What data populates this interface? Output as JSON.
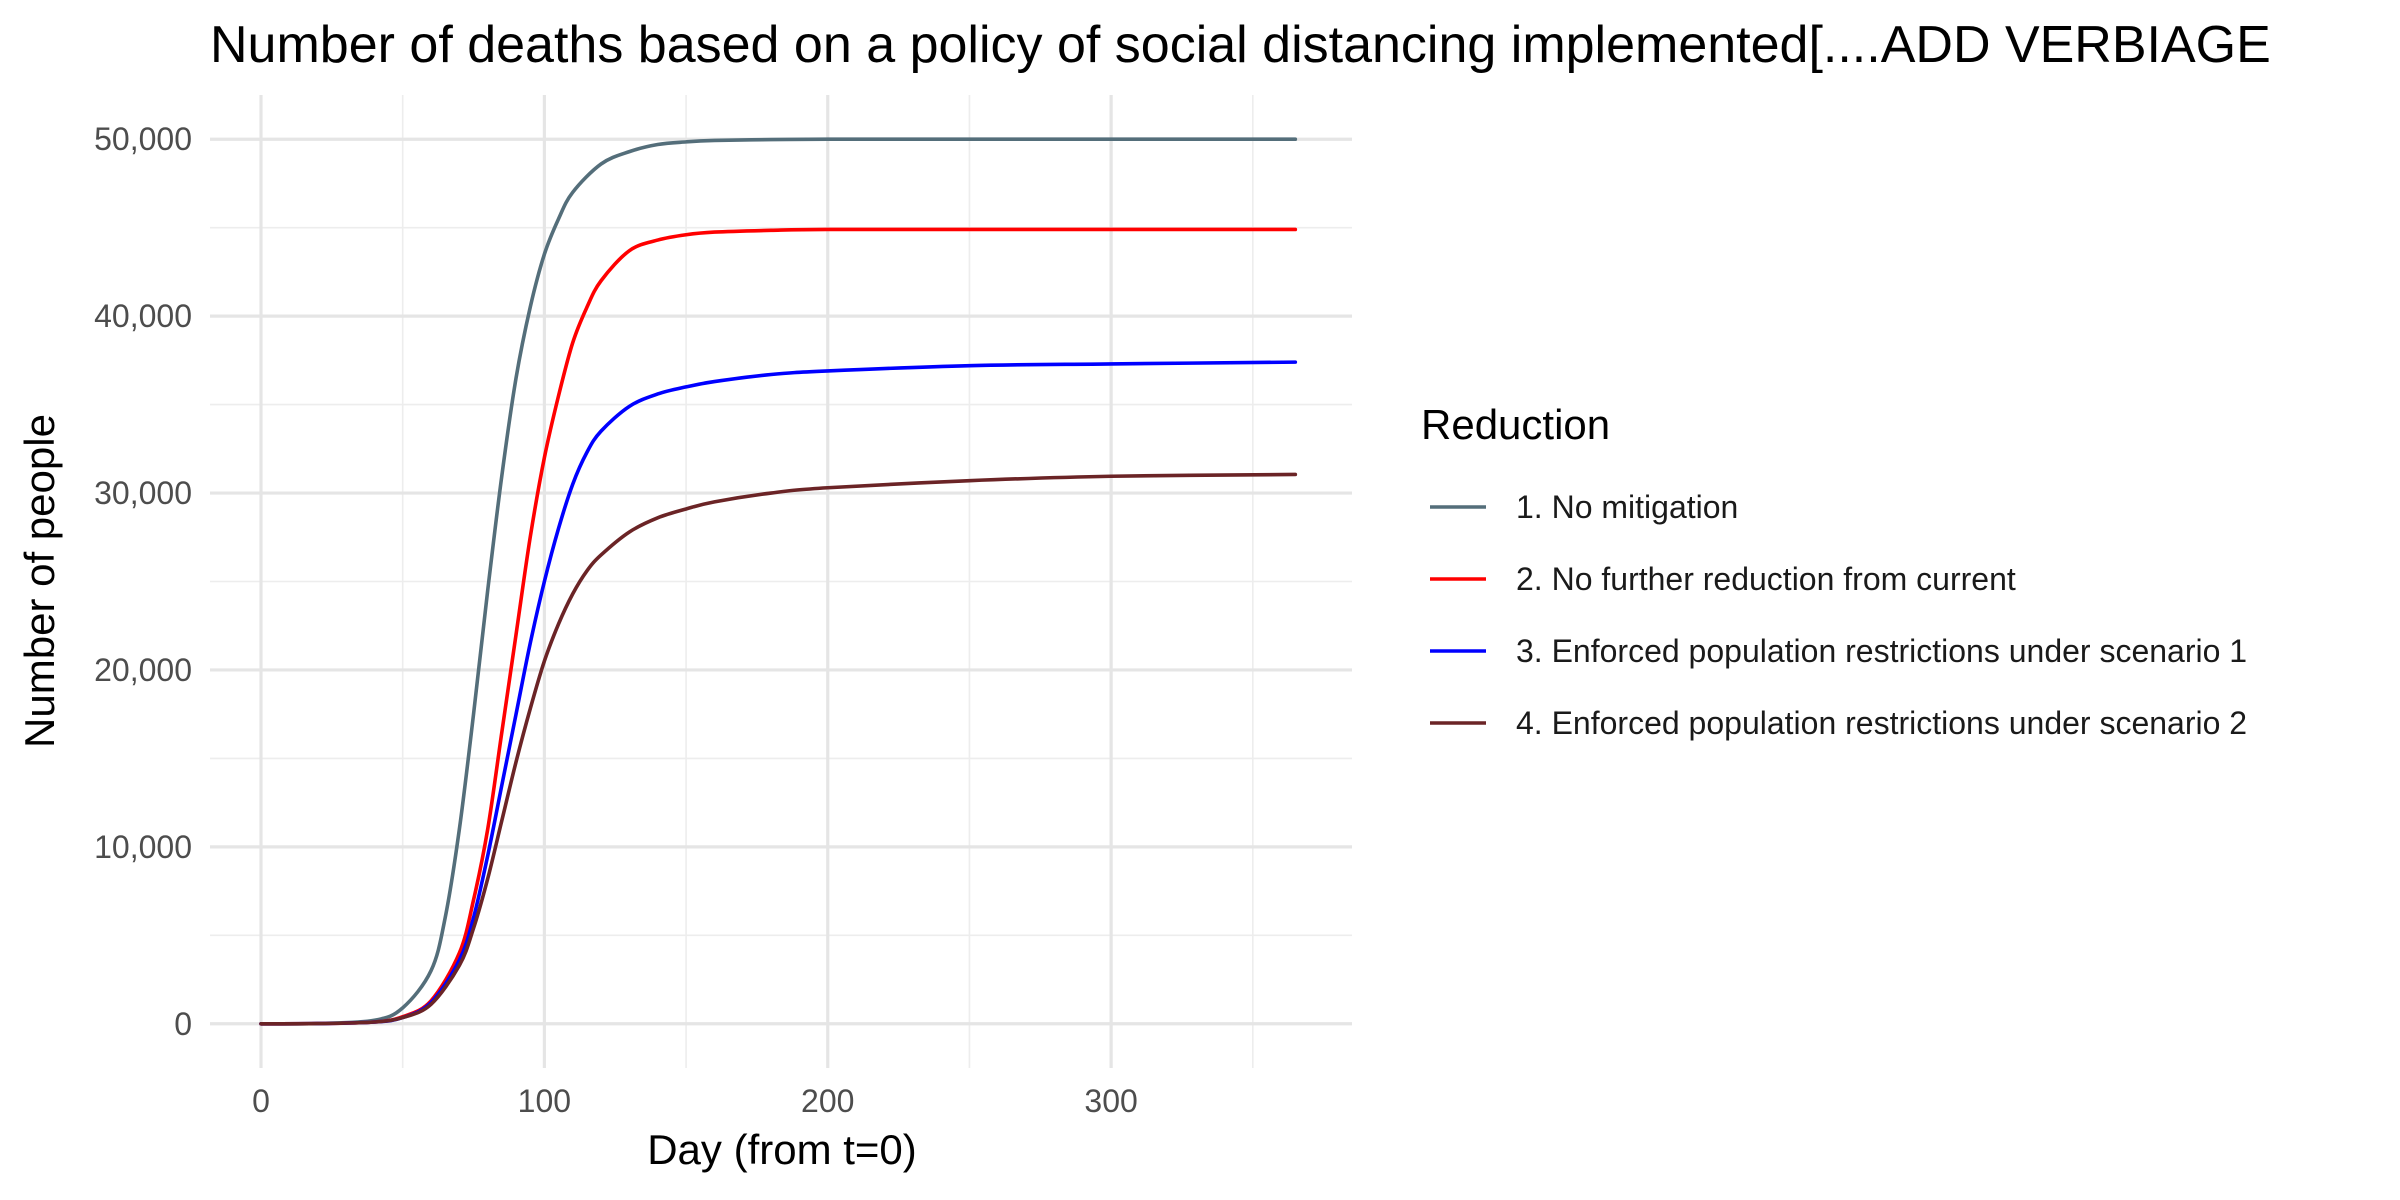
{
  "chart_data": {
    "type": "line",
    "title": "Number of deaths based on a policy of social distancing implemented[....ADD VERBIAGE",
    "xlabel": "Day (from t=0)",
    "ylabel": "Number of people",
    "xlim": [
      -18,
      385
    ],
    "ylim": [
      -2500,
      52500
    ],
    "xticks": [
      0,
      100,
      200,
      300
    ],
    "xtick_labels": [
      "0",
      "100",
      "200",
      "300"
    ],
    "yticks": [
      0,
      10000,
      20000,
      30000,
      40000,
      50000
    ],
    "ytick_labels": [
      "0",
      "10,000",
      "20,000",
      "30,000",
      "40,000",
      "50,000"
    ],
    "grid": true,
    "legend": {
      "title": "Reduction",
      "position": "right"
    },
    "series": [
      {
        "name": "1. No mitigation",
        "color": "#546e7a",
        "x": [
          0,
          20,
          40,
          50,
          60,
          65,
          70,
          75,
          80,
          85,
          90,
          95,
          100,
          105,
          110,
          120,
          130,
          140,
          150,
          160,
          180,
          200,
          250,
          300,
          365
        ],
        "y": [
          0,
          20,
          200,
          900,
          3000,
          6000,
          11000,
          17500,
          24500,
          31000,
          36500,
          40500,
          43500,
          45500,
          47000,
          48600,
          49300,
          49700,
          49850,
          49930,
          49980,
          50000,
          50000,
          50000,
          50000
        ]
      },
      {
        "name": "2. No further reduction from current",
        "color": "#ff0000",
        "x": [
          0,
          20,
          40,
          50,
          60,
          70,
          75,
          80,
          85,
          90,
          95,
          100,
          105,
          110,
          115,
          120,
          130,
          140,
          150,
          160,
          180,
          200,
          250,
          300,
          365
        ],
        "y": [
          0,
          10,
          100,
          400,
          1300,
          4000,
          7000,
          11000,
          16500,
          22000,
          27500,
          32000,
          35500,
          38500,
          40500,
          42000,
          43700,
          44300,
          44600,
          44750,
          44850,
          44900,
          44900,
          44900,
          44900
        ]
      },
      {
        "name": "3. Enforced population restrictions under scenario 1",
        "color": "#0000ff",
        "x": [
          0,
          20,
          40,
          50,
          60,
          70,
          75,
          80,
          85,
          90,
          95,
          100,
          105,
          110,
          115,
          120,
          130,
          140,
          150,
          160,
          180,
          200,
          250,
          300,
          365
        ],
        "y": [
          0,
          10,
          100,
          350,
          1200,
          3600,
          6000,
          9500,
          13500,
          17500,
          21500,
          25000,
          28000,
          30500,
          32300,
          33500,
          34900,
          35600,
          36000,
          36300,
          36700,
          36900,
          37200,
          37300,
          37400
        ]
      },
      {
        "name": "4. Enforced population restrictions under scenario 2",
        "color": "#6b2426",
        "x": [
          0,
          20,
          40,
          50,
          60,
          70,
          75,
          80,
          85,
          90,
          95,
          100,
          105,
          110,
          115,
          120,
          130,
          140,
          150,
          160,
          180,
          200,
          250,
          300,
          365
        ],
        "y": [
          0,
          10,
          100,
          350,
          1100,
          3300,
          5400,
          8200,
          11500,
          14800,
          17800,
          20500,
          22600,
          24300,
          25600,
          26500,
          27800,
          28600,
          29100,
          29500,
          30000,
          30300,
          30700,
          30950,
          31050
        ]
      }
    ]
  }
}
